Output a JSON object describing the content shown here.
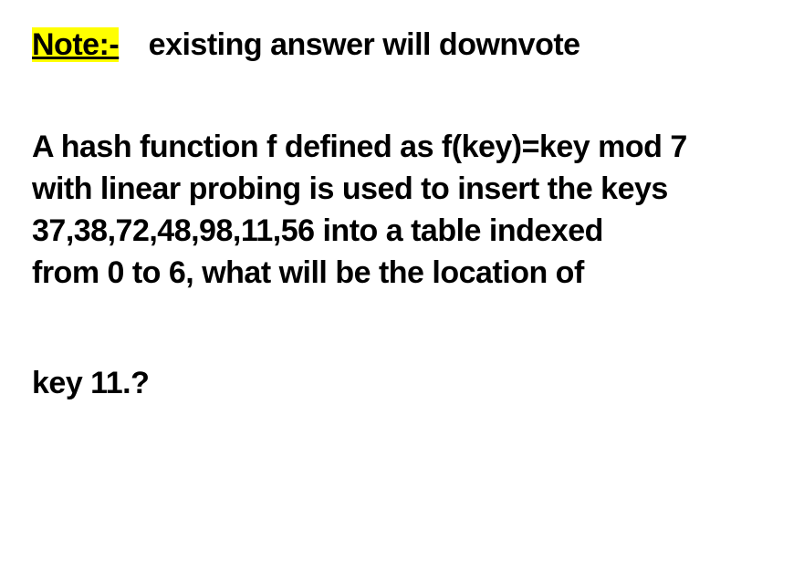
{
  "note": {
    "label": "Note:-",
    "text": "existing answer will downvote"
  },
  "question": {
    "line1": "A hash function f defined as f(key)=key mod 7",
    "line2": "with linear probing is used to insert the keys",
    "line3": "37,38,72,48,98,11,56 into a table indexed",
    "line4": "from 0 to 6, what will be the location of"
  },
  "key_question": "key 11.?",
  "styling": {
    "highlight_color": "#ffff00",
    "text_color": "#000000",
    "background_color": "#ffffff",
    "font_weight": 900,
    "font_size": 34
  }
}
